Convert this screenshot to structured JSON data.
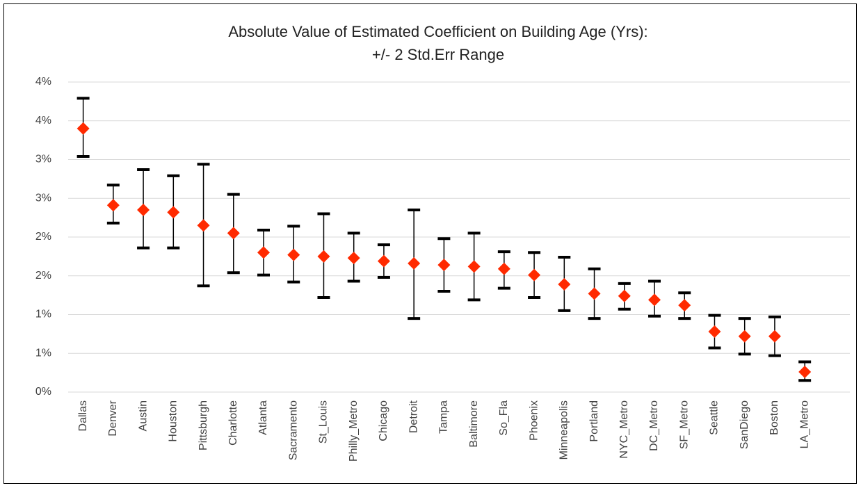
{
  "chart_data": {
    "type": "errorbar",
    "title": [
      "Absolute Value of Estimated Coefficient on Building Age (Yrs):",
      "+/- 2 Std.Err Range"
    ],
    "categories": [
      "Dallas",
      "Denver",
      "Austin",
      "Houston",
      "Pittsburgh",
      "Charlotte",
      "Atlanta",
      "Sacramento",
      "St_Louis",
      "Philly_Metro",
      "Chicago",
      "Detroit",
      "Tampa",
      "Baltimore",
      "So_Fla",
      "Phoenix",
      "Minneapolis",
      "Portland",
      "NYC_Metro",
      "DC_Metro",
      "SF_Metro",
      "Seattle",
      "SanDiego",
      "Boston",
      "LA_Metro"
    ],
    "series": [
      {
        "color": "#ff2a00",
        "bar_color": "#000000",
        "values": [
          3.4,
          2.41,
          2.35,
          2.32,
          2.15,
          2.05,
          1.8,
          1.77,
          1.75,
          1.73,
          1.69,
          1.66,
          1.64,
          1.62,
          1.59,
          1.51,
          1.39,
          1.27,
          1.24,
          1.19,
          1.12,
          0.78,
          0.72,
          0.72,
          0.26
        ],
        "low": [
          3.04,
          2.18,
          1.86,
          1.86,
          1.37,
          1.54,
          1.51,
          1.42,
          1.22,
          1.43,
          1.48,
          0.95,
          1.3,
          1.19,
          1.34,
          1.22,
          1.05,
          0.95,
          1.07,
          0.98,
          0.95,
          0.57,
          0.49,
          0.47,
          0.15
        ],
        "high": [
          3.79,
          2.67,
          2.87,
          2.79,
          2.94,
          2.55,
          2.09,
          2.14,
          2.3,
          2.05,
          1.9,
          2.35,
          1.98,
          2.05,
          1.81,
          1.8,
          1.74,
          1.59,
          1.4,
          1.43,
          1.28,
          0.99,
          0.95,
          0.97,
          0.39
        ]
      }
    ],
    "ylim": [
      0,
      4
    ],
    "yticks": [
      {
        "value": 0,
        "label": "0%"
      },
      {
        "value": 0.5,
        "label": "1%"
      },
      {
        "value": 1,
        "label": "1%"
      },
      {
        "value": 1.5,
        "label": "2%"
      },
      {
        "value": 2,
        "label": "2%"
      },
      {
        "value": 2.5,
        "label": "3%"
      },
      {
        "value": 3,
        "label": "3%"
      },
      {
        "value": 3.5,
        "label": "4%"
      },
      {
        "value": 4,
        "label": "4%"
      }
    ],
    "grid": true
  }
}
